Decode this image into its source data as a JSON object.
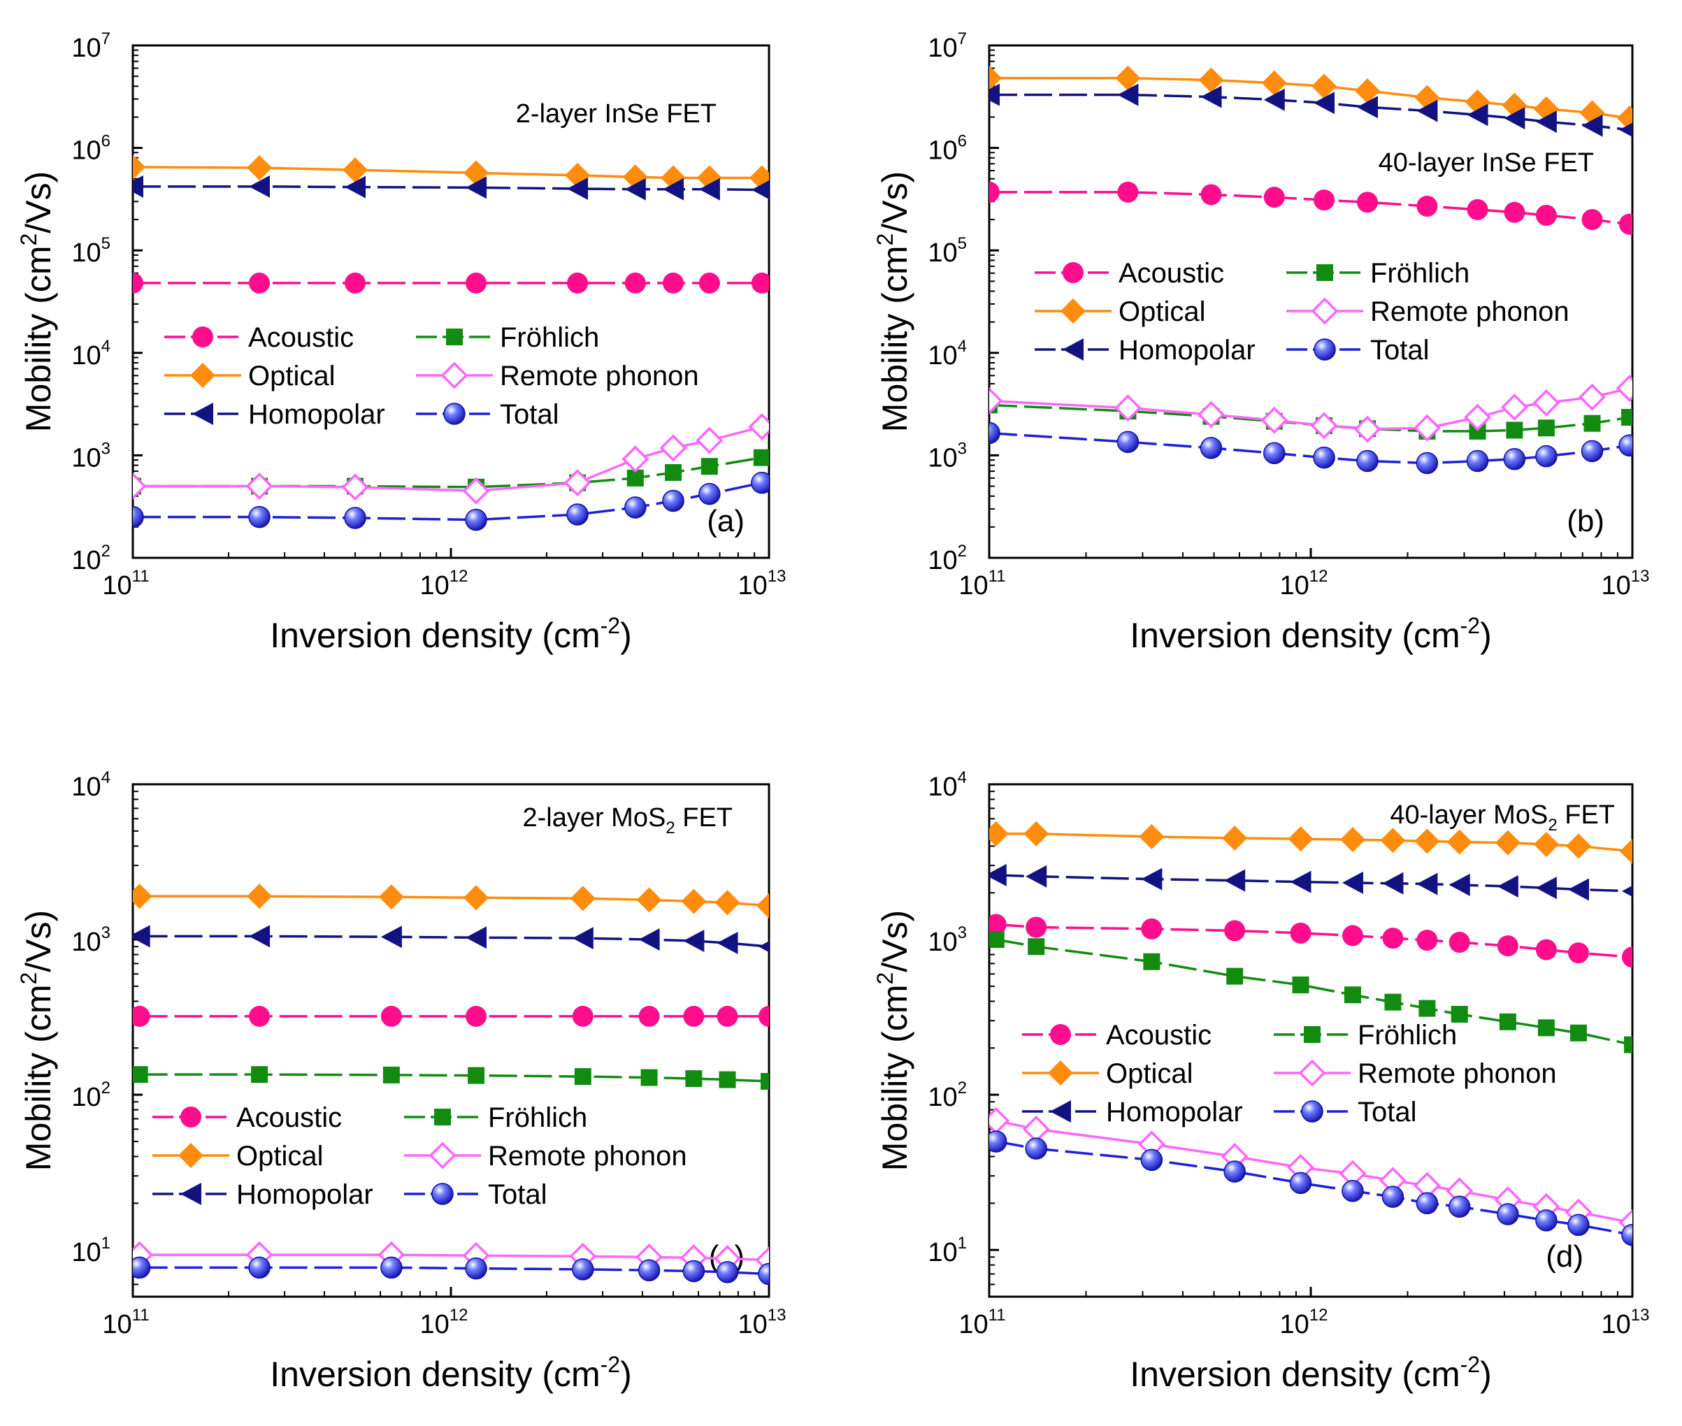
{
  "colors": {
    "Acoustic": "#ff0d8c",
    "Optical": "#ff8c0d",
    "Homopolar": "#121380",
    "Fröhlich": "#118c11",
    "Remote phonon": "#ff66ff",
    "Total": "#1f1fd6"
  },
  "icons": {
    "Acoustic": "circle-marker-icon",
    "Optical": "diamond-marker-icon",
    "Homopolar": "left-triangle-marker-icon",
    "Fröhlich": "square-marker-icon",
    "Remote phonon": "open-diamond-marker-icon",
    "Total": "sphere-marker-icon"
  },
  "chart_data": [
    {
      "type": "line",
      "panel": "(a)",
      "title": "2-layer InSe FET",
      "xlabel": "Inversion density (cm-2)",
      "ylabel": "Mobility (cm2/Vs)",
      "xscale": "log",
      "yscale": "log",
      "xlim": [
        100000000000.0,
        10000000000000.0
      ],
      "ylim": [
        100,
        10000000
      ],
      "xticks": [
        "10^11",
        "10^12",
        "10^13"
      ],
      "yticks": [
        "10^2",
        "10^3",
        "10^4",
        "10^5",
        "10^6",
        "10^7"
      ],
      "legend_position": "center-left",
      "legend": [
        "Acoustic",
        "Optical",
        "Homopolar",
        "Fröhlich",
        "Remote phonon",
        "Total"
      ],
      "x": [
        100000000000.0,
        250000000000.0,
        500000000000.0,
        1200000000000.0,
        2500000000000.0,
        3800000000000.0,
        5000000000000.0,
        6500000000000.0,
        9500000000000.0
      ],
      "series": [
        {
          "name": "Acoustic",
          "values": [
            48000,
            48000,
            48000,
            48000,
            48000,
            48000,
            48000,
            48000,
            48000
          ]
        },
        {
          "name": "Optical",
          "values": [
            650000,
            640000,
            610000,
            570000,
            540000,
            520000,
            510000,
            510000,
            510000
          ]
        },
        {
          "name": "Homopolar",
          "values": [
            420000,
            420000,
            415000,
            410000,
            400000,
            395000,
            395000,
            395000,
            390000
          ]
        },
        {
          "name": "Fröhlich",
          "values": [
            500,
            500,
            500,
            490,
            540,
            600,
            680,
            780,
            950
          ]
        },
        {
          "name": "Remote phonon",
          "values": [
            500,
            500,
            490,
            450,
            540,
            920,
            1180,
            1400,
            1900
          ]
        },
        {
          "name": "Total",
          "values": [
            250,
            250,
            245,
            235,
            265,
            310,
            360,
            420,
            540
          ]
        }
      ]
    },
    {
      "type": "line",
      "panel": "(b)",
      "title": "40-layer InSe FET",
      "xlabel": "Inversion density (cm-2)",
      "ylabel": "Mobility (cm2/Vs)",
      "xscale": "log",
      "yscale": "log",
      "xlim": [
        100000000000.0,
        10000000000000.0
      ],
      "ylim": [
        100,
        10000000
      ],
      "xticks": [
        "10^11",
        "10^12",
        "10^13"
      ],
      "yticks": [
        "10^2",
        "10^3",
        "10^4",
        "10^5",
        "10^6",
        "10^7"
      ],
      "legend_position": "center",
      "legend": [
        "Acoustic",
        "Optical",
        "Homopolar",
        "Fröhlich",
        "Remote phonon",
        "Total"
      ],
      "x": [
        100000000000.0,
        270000000000.0,
        490000000000.0,
        770000000000.0,
        1100000000000.0,
        1500000000000.0,
        2300000000000.0,
        3300000000000.0,
        4300000000000.0,
        5400000000000.0,
        7500000000000.0,
        9800000000000.0
      ],
      "series": [
        {
          "name": "Acoustic",
          "values": [
            370000,
            370000,
            350000,
            330000,
            310000,
            295000,
            270000,
            250000,
            235000,
            220000,
            200000,
            180000
          ]
        },
        {
          "name": "Optical",
          "values": [
            4800000,
            4800000,
            4600000,
            4300000,
            4000000,
            3600000,
            3100000,
            2800000,
            2600000,
            2400000,
            2200000,
            1950000
          ]
        },
        {
          "name": "Homopolar",
          "values": [
            3300000,
            3300000,
            3150000,
            2950000,
            2750000,
            2500000,
            2300000,
            2100000,
            1950000,
            1800000,
            1650000,
            1500000
          ]
        },
        {
          "name": "Fröhlich",
          "values": [
            3100,
            2700,
            2400,
            2150,
            1950,
            1820,
            1720,
            1720,
            1760,
            1850,
            2050,
            2350
          ]
        },
        {
          "name": "Remote phonon",
          "values": [
            3400,
            2900,
            2500,
            2200,
            1950,
            1800,
            1850,
            2350,
            2950,
            3250,
            3700,
            4500
          ]
        },
        {
          "name": "Total",
          "values": [
            1650,
            1350,
            1180,
            1050,
            950,
            880,
            840,
            880,
            920,
            980,
            1100,
            1250
          ]
        }
      ]
    },
    {
      "type": "line",
      "panel": "(c)",
      "title": "2-layer MoS2 FET",
      "xlabel": "Inversion density (cm-2)",
      "ylabel": "Mobility (cm2/Vs)",
      "xscale": "log",
      "yscale": "log",
      "xlim": [
        100000000000.0,
        10000000000000.0
      ],
      "ylim": [
        5,
        10000
      ],
      "xticks": [
        "10^11",
        "10^12",
        "10^13"
      ],
      "yticks": [
        "10^1",
        "10^2",
        "10^3",
        "10^4"
      ],
      "legend_position": "lower-left",
      "legend": [
        "Acoustic",
        "Optical",
        "Homopolar",
        "Fröhlich",
        "Remote phonon",
        "Total"
      ],
      "x": [
        105000000000.0,
        250000000000.0,
        650000000000.0,
        1200000000000.0,
        2600000000000.0,
        4200000000000.0,
        5800000000000.0,
        7400000000000.0,
        10000000000000.0
      ],
      "series": [
        {
          "name": "Acoustic",
          "values": [
            320,
            320,
            320,
            320,
            320,
            320,
            320,
            320,
            320
          ]
        },
        {
          "name": "Optical",
          "values": [
            1900,
            1900,
            1880,
            1860,
            1840,
            1800,
            1760,
            1730,
            1650
          ]
        },
        {
          "name": "Homopolar",
          "values": [
            1050,
            1050,
            1040,
            1030,
            1020,
            1000,
            980,
            950,
            900
          ]
        },
        {
          "name": "Fröhlich",
          "values": [
            135,
            135,
            134,
            133,
            131,
            129,
            127,
            125,
            122
          ]
        },
        {
          "name": "Remote phonon",
          "values": [
            9.3,
            9.3,
            9.3,
            9.2,
            9.1,
            9.0,
            8.9,
            8.8,
            8.6
          ]
        },
        {
          "name": "Total",
          "values": [
            7.7,
            7.7,
            7.7,
            7.6,
            7.5,
            7.4,
            7.3,
            7.2,
            7.0
          ]
        }
      ]
    },
    {
      "type": "line",
      "panel": "(d)",
      "title": "40-layer MoS2 FET",
      "xlabel": "Inversion density (cm-2)",
      "ylabel": "Mobility (cm2/Vs)",
      "xscale": "log",
      "yscale": "log",
      "xlim": [
        100000000000.0,
        10000000000000.0
      ],
      "ylim": [
        5,
        10000
      ],
      "xticks": [
        "10^11",
        "10^12",
        "10^13"
      ],
      "yticks": [
        "10^1",
        "10^2",
        "10^3",
        "10^4"
      ],
      "legend_position": "center",
      "legend": [
        "Acoustic",
        "Optical",
        "Homopolar",
        "Fröhlich",
        "Remote phonon",
        "Total"
      ],
      "x": [
        105000000000.0,
        140000000000.0,
        320000000000.0,
        580000000000.0,
        930000000000.0,
        1350000000000.0,
        1800000000000.0,
        2300000000000.0,
        2900000000000.0,
        4100000000000.0,
        5400000000000.0,
        6800000000000.0,
        10000000000000.0
      ],
      "series": [
        {
          "name": "Acoustic",
          "values": [
            1250,
            1200,
            1170,
            1140,
            1100,
            1060,
            1020,
            990,
            960,
            910,
            860,
            820,
            770
          ]
        },
        {
          "name": "Optical",
          "values": [
            4800,
            4800,
            4600,
            4500,
            4450,
            4400,
            4350,
            4300,
            4250,
            4200,
            4100,
            4000,
            3700
          ]
        },
        {
          "name": "Homopolar",
          "values": [
            2600,
            2550,
            2450,
            2400,
            2350,
            2320,
            2300,
            2280,
            2250,
            2200,
            2150,
            2100,
            2050
          ]
        },
        {
          "name": "Fröhlich",
          "values": [
            1000,
            900,
            720,
            580,
            510,
            440,
            395,
            360,
            330,
            295,
            270,
            250,
            210
          ]
        },
        {
          "name": "Remote phonon",
          "values": [
            68,
            60,
            48,
            40,
            34,
            31,
            28,
            26,
            24,
            21,
            19,
            17.5,
            15
          ]
        },
        {
          "name": "Total",
          "values": [
            50,
            45,
            38,
            32,
            27,
            24,
            22,
            20,
            19,
            17,
            15.5,
            14.5,
            12.5
          ]
        }
      ]
    }
  ]
}
